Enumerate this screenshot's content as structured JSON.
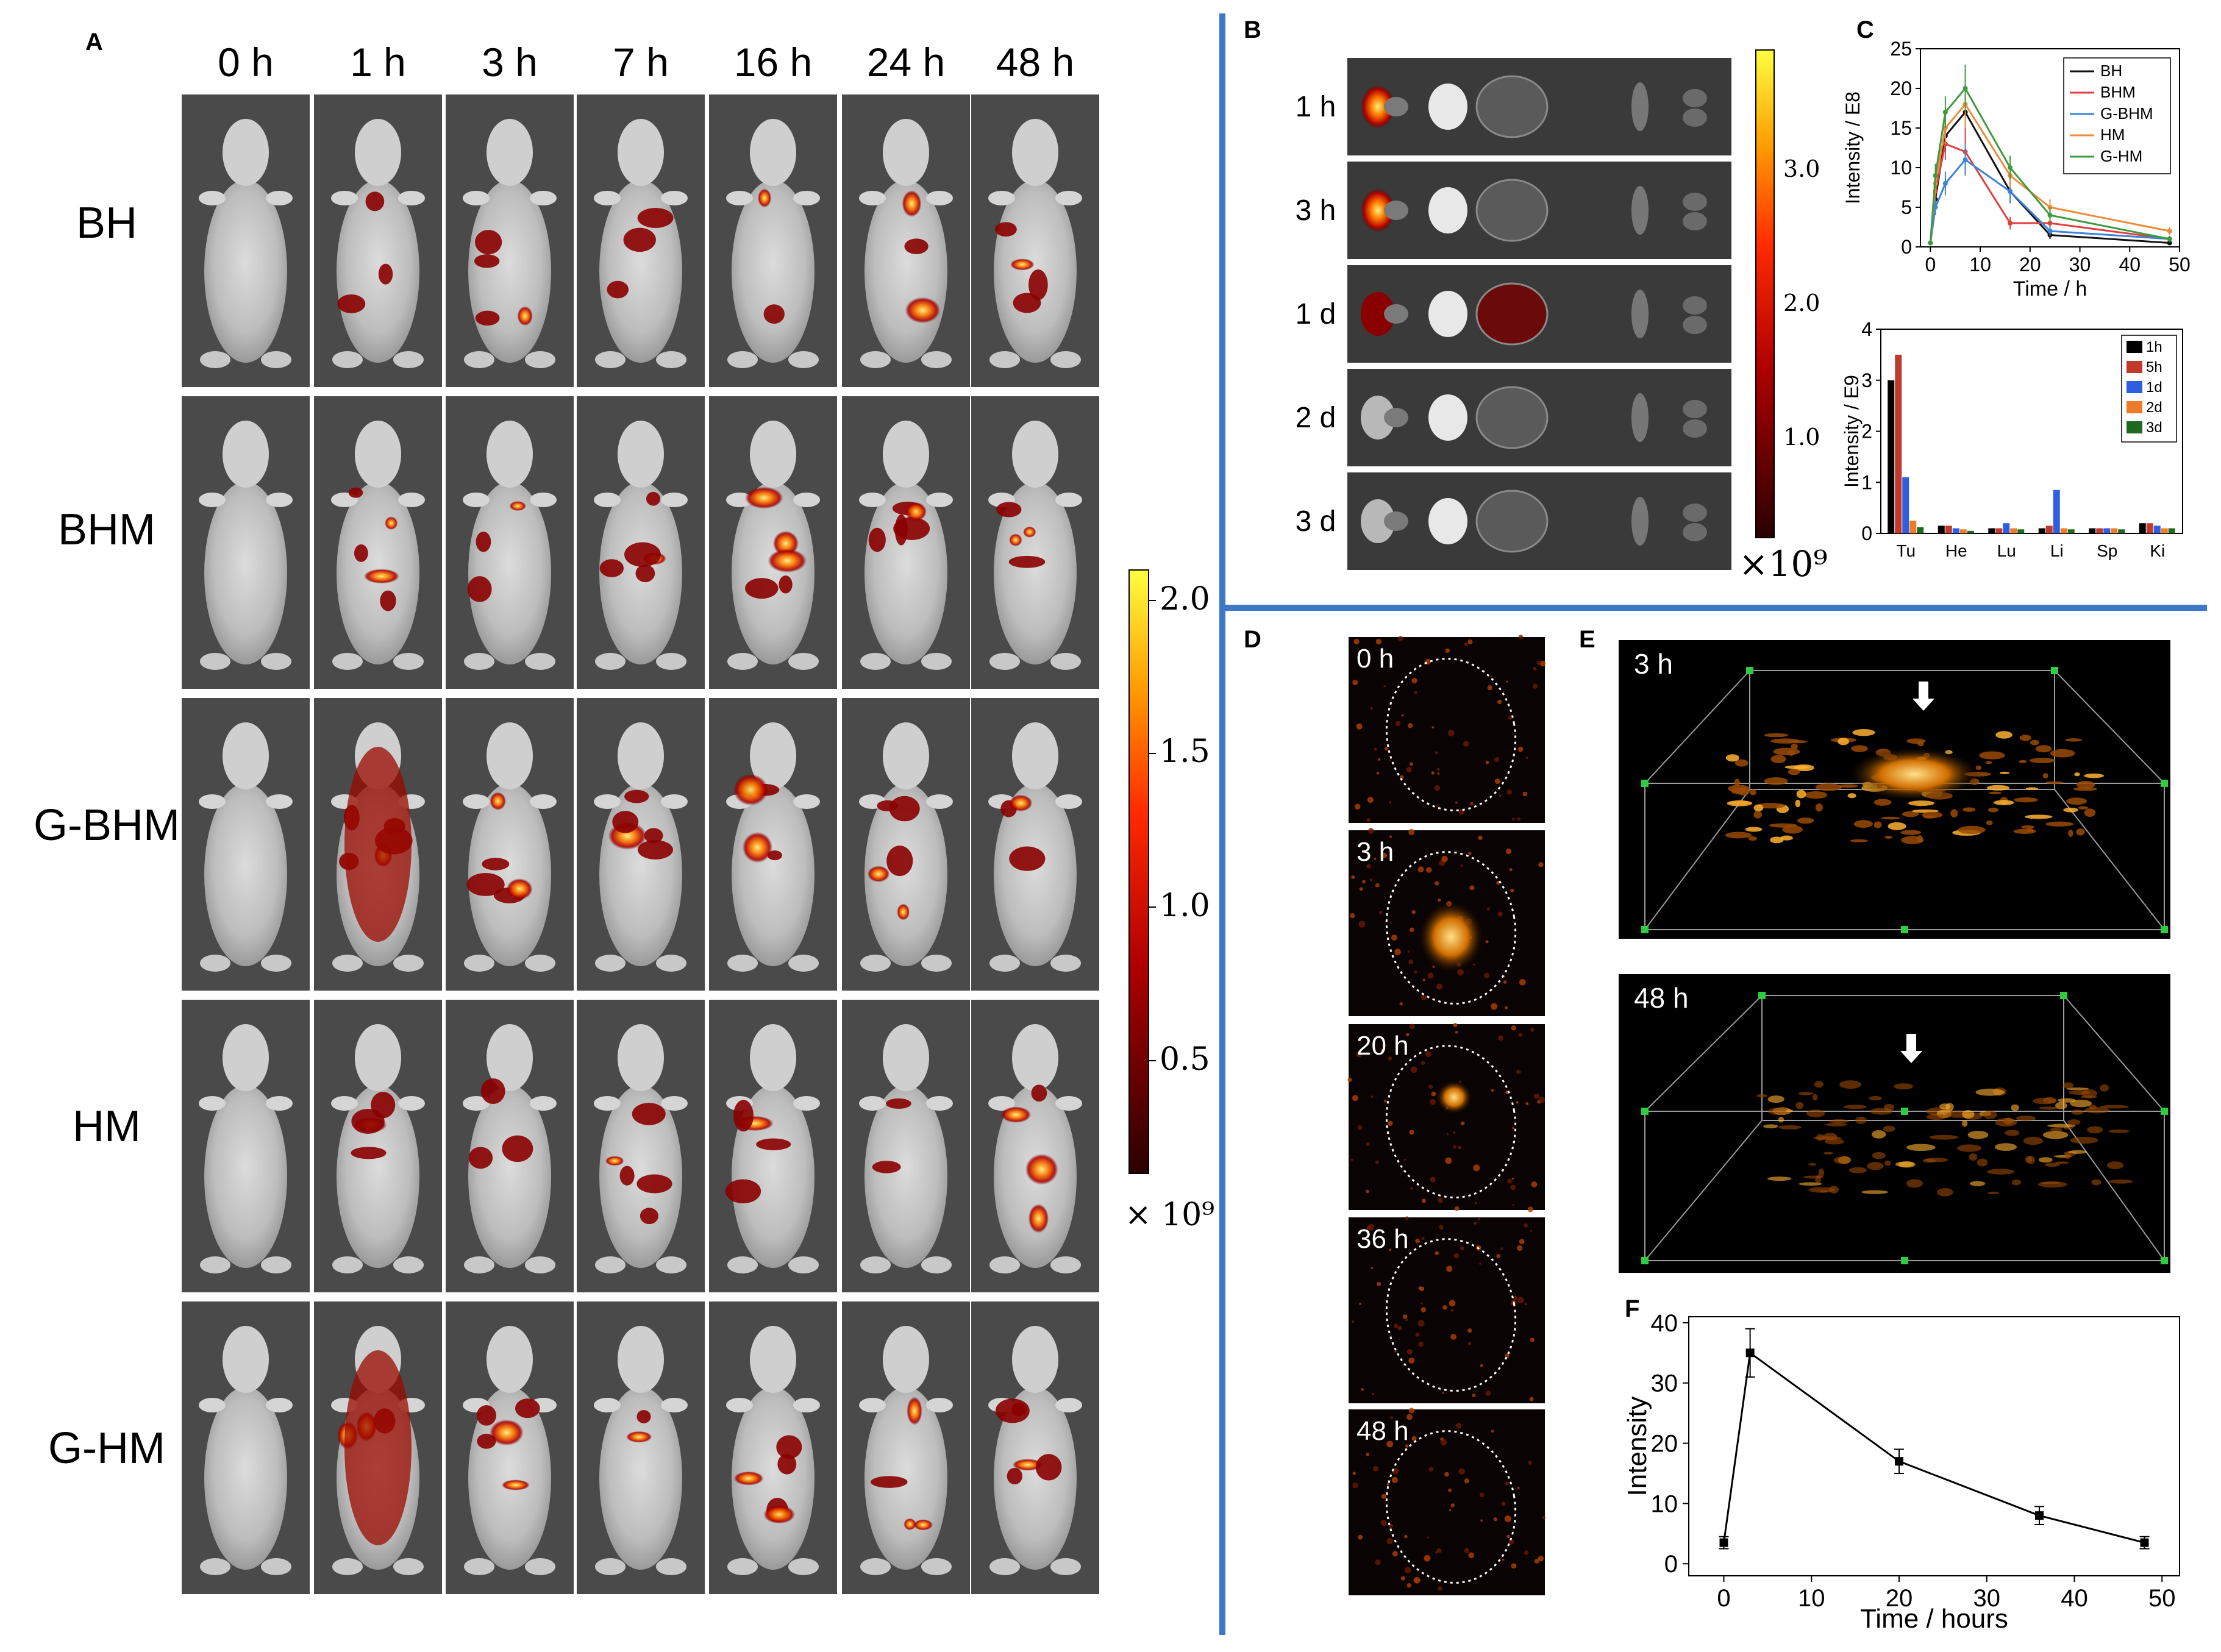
{
  "panels": [
    "A",
    "B",
    "C",
    "D",
    "E",
    "F"
  ],
  "panel_a": {
    "times": [
      "0 h",
      "1 h",
      "3 h",
      "7 h",
      "16 h",
      "24 h",
      "48 h"
    ],
    "groups": [
      "BH",
      "BHM",
      "G-BHM",
      "HM",
      "G-HM"
    ],
    "colorbar": {
      "ticks": [
        "2.0",
        "1.5",
        "1.0",
        "0.5"
      ],
      "unit": "× 10⁹"
    }
  },
  "panel_b": {
    "rows": [
      "1 h",
      "3 h",
      "1 d",
      "2 d",
      "3 d"
    ],
    "colorbar": {
      "ticks": [
        "3.0",
        "2.0",
        "1.0"
      ],
      "unit": "×10⁹"
    }
  },
  "panel_d": {
    "times": [
      "0 h",
      "3 h",
      "20 h",
      "36 h",
      "48 h"
    ]
  },
  "panel_e": {
    "times": [
      "3 h",
      "48 h"
    ]
  },
  "colors": {
    "BH": "#111111",
    "BHM": "#e04040",
    "G-BHM": "#3c82d8",
    "HM": "#f08a3a",
    "G-HM": "#3e9a3e"
  },
  "chart_data": [
    {
      "id": "C_top",
      "type": "line",
      "x": [
        0,
        1,
        3,
        7,
        16,
        24,
        48
      ],
      "xlabel": "Time / h",
      "ylabel": "Intensity / E8",
      "xticks": [
        "0",
        "10",
        "20",
        "30",
        "40",
        "50"
      ],
      "yticks": [
        "0",
        "5",
        "10",
        "15",
        "20",
        "25"
      ],
      "xlim": [
        -2,
        50
      ],
      "ylim": [
        0,
        25
      ],
      "series": [
        {
          "name": "BH",
          "values": [
            0.5,
            6,
            14,
            17,
            7,
            1.5,
            0.5
          ],
          "errors": [
            0.2,
            1,
            2,
            2,
            1.5,
            0.5,
            0.2
          ]
        },
        {
          "name": "BHM",
          "values": [
            0.5,
            7,
            13,
            12,
            3,
            3,
            1
          ],
          "errors": [
            0.2,
            1,
            2,
            3,
            0.8,
            0.8,
            0.3
          ]
        },
        {
          "name": "G-BHM",
          "values": [
            0.5,
            5,
            8,
            11,
            7,
            2,
            1
          ],
          "errors": [
            0.2,
            1,
            1.5,
            2,
            1.5,
            0.6,
            0.3
          ]
        },
        {
          "name": "HM",
          "values": [
            0.5,
            8,
            15,
            18,
            9,
            5,
            2
          ],
          "errors": [
            0.2,
            1.5,
            2,
            3,
            1.5,
            1,
            0.5
          ]
        },
        {
          "name": "G-HM",
          "values": [
            0.5,
            9,
            17,
            20,
            10,
            4,
            1
          ],
          "errors": [
            0.2,
            1.5,
            2,
            3,
            1.5,
            1,
            0.4
          ]
        }
      ],
      "legend": "top-right"
    },
    {
      "id": "C_bottom",
      "type": "bar",
      "categories": [
        "Tu",
        "He",
        "Lu",
        "Li",
        "Sp",
        "Ki"
      ],
      "ylabel": "Intensity / E9",
      "yticks": [
        "0",
        "1",
        "2",
        "3",
        "4"
      ],
      "ylim": [
        0,
        4
      ],
      "series": [
        {
          "name": "1h",
          "values": [
            3.0,
            0.15,
            0.1,
            0.1,
            0.1,
            0.2
          ]
        },
        {
          "name": "5h",
          "values": [
            3.5,
            0.15,
            0.1,
            0.15,
            0.1,
            0.2
          ]
        },
        {
          "name": "1d",
          "values": [
            1.1,
            0.1,
            0.2,
            0.85,
            0.1,
            0.15
          ]
        },
        {
          "name": "2d",
          "values": [
            0.25,
            0.08,
            0.1,
            0.1,
            0.1,
            0.1
          ]
        },
        {
          "name": "3d",
          "values": [
            0.12,
            0.05,
            0.08,
            0.08,
            0.08,
            0.1
          ]
        }
      ],
      "legend": "top-right"
    },
    {
      "id": "F",
      "type": "line",
      "x": [
        0,
        3,
        20,
        36,
        48
      ],
      "values": [
        3.5,
        35,
        17,
        8,
        3.5
      ],
      "errors": [
        1,
        4,
        2,
        1.5,
        1
      ],
      "xlabel": "Time / hours",
      "ylabel": "Intensity",
      "xticks": [
        "0",
        "10",
        "20",
        "30",
        "40",
        "50"
      ],
      "yticks": [
        "0",
        "10",
        "20",
        "30",
        "40"
      ],
      "xlim": [
        -4,
        52
      ],
      "ylim": [
        -2,
        41
      ]
    }
  ]
}
